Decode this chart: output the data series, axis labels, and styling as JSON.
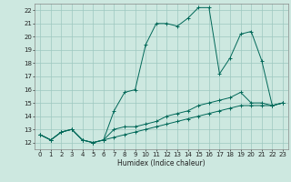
{
  "xlabel": "Humidex (Indice chaleur)",
  "bg_color": "#cde8e0",
  "grid_color": "#9dc8c0",
  "line_color": "#006858",
  "xlim": [
    -0.5,
    23.5
  ],
  "ylim": [
    11.5,
    22.5
  ],
  "xticks": [
    0,
    1,
    2,
    3,
    4,
    5,
    6,
    7,
    8,
    9,
    10,
    11,
    12,
    13,
    14,
    15,
    16,
    17,
    18,
    19,
    20,
    21,
    22,
    23
  ],
  "yticks": [
    12,
    13,
    14,
    15,
    16,
    17,
    18,
    19,
    20,
    21,
    22
  ],
  "line1_x": [
    0,
    1,
    2,
    3,
    4,
    5,
    6,
    7,
    8,
    9,
    10,
    11,
    12,
    13,
    14,
    15,
    16,
    17,
    18,
    19,
    20,
    21,
    22,
    23
  ],
  "line1_y": [
    12.6,
    12.2,
    12.8,
    13.0,
    12.2,
    12.0,
    12.2,
    14.4,
    15.8,
    16.0,
    19.4,
    21.0,
    21.0,
    20.8,
    21.4,
    22.2,
    22.2,
    17.2,
    18.4,
    20.2,
    20.4,
    18.2,
    14.8,
    15.0
  ],
  "line2_x": [
    0,
    1,
    2,
    3,
    4,
    5,
    6,
    7,
    8,
    9,
    10,
    11,
    12,
    13,
    14,
    15,
    16,
    17,
    18,
    19,
    20,
    21,
    22,
    23
  ],
  "line2_y": [
    12.6,
    12.2,
    12.8,
    13.0,
    12.2,
    12.0,
    12.2,
    13.0,
    13.2,
    13.2,
    13.4,
    13.6,
    14.0,
    14.2,
    14.4,
    14.8,
    15.0,
    15.2,
    15.4,
    15.8,
    15.0,
    15.0,
    14.8,
    15.0
  ],
  "line3_x": [
    0,
    1,
    2,
    3,
    4,
    5,
    6,
    7,
    8,
    9,
    10,
    11,
    12,
    13,
    14,
    15,
    16,
    17,
    18,
    19,
    20,
    21,
    22,
    23
  ],
  "line3_y": [
    12.6,
    12.2,
    12.8,
    13.0,
    12.2,
    12.0,
    12.2,
    12.4,
    12.6,
    12.8,
    13.0,
    13.2,
    13.4,
    13.6,
    13.8,
    14.0,
    14.2,
    14.4,
    14.6,
    14.8,
    14.8,
    14.8,
    14.8,
    15.0
  ],
  "xlabel_fontsize": 5.5,
  "tick_fontsize": 5,
  "linewidth": 0.7,
  "markersize": 2.5
}
